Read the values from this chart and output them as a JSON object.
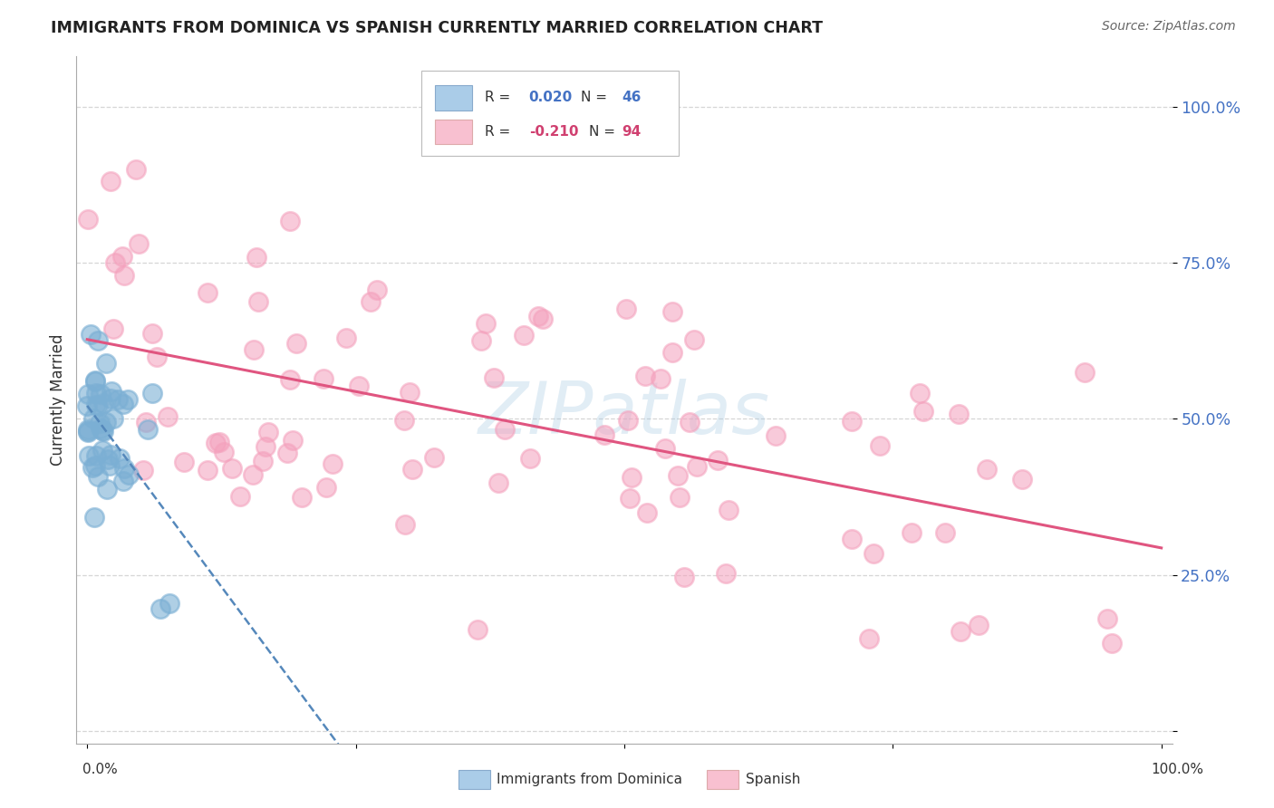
{
  "title": "IMMIGRANTS FROM DOMINICA VS SPANISH CURRENTLY MARRIED CORRELATION CHART",
  "source": "Source: ZipAtlas.com",
  "ylabel": "Currently Married",
  "watermark": "ZIPatlas",
  "legend_entries": [
    {
      "label": "Immigrants from Dominica",
      "R": 0.02,
      "N": 46
    },
    {
      "label": "Spanish",
      "R": -0.21,
      "N": 94
    }
  ],
  "blue_scatter_color": "#7bafd4",
  "pink_scatter_color": "#f4a0bc",
  "blue_line_color": "#5588bb",
  "pink_line_color": "#e05580",
  "blue_legend_face": "#aacce8",
  "pink_legend_face": "#f8c0d0",
  "text_color_blue": "#4472c4",
  "text_color_pink": "#d04070",
  "background_color": "#ffffff",
  "grid_color": "#cccccc",
  "title_color": "#222222",
  "source_color": "#666666",
  "label_color": "#333333"
}
